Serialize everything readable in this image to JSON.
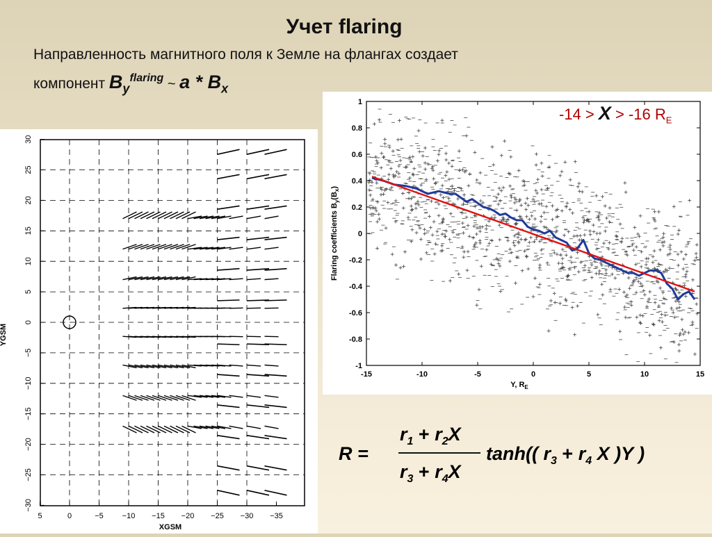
{
  "slide": {
    "title": "Учет flaring",
    "subtitle_line1": "Направленность магнитного поля к Земле на флангах создает",
    "subtitle_line2_prefix": "компонент ",
    "formula": {
      "B": "B",
      "y": "y",
      "flaring": "flaring",
      "tilde": " ~ ",
      "a": "a",
      "star": " * ",
      "Bx": "B",
      "x": "x"
    }
  },
  "left_plot": {
    "ylabel": "YGSM",
    "xlabel": "XGSM",
    "yticks": [
      "30",
      "25",
      "20",
      "15",
      "10",
      "5",
      "0",
      "−5",
      "−10",
      "−15",
      "−20",
      "−25",
      "−30"
    ],
    "xticks": [
      "5",
      "0",
      "−5",
      "−10",
      "−15",
      "−20",
      "−25",
      "−30",
      "−35"
    ]
  },
  "legend": {
    "range_left": "-14 > ",
    "x": "X",
    "range_right": " > -16 R",
    "sub": "E"
  },
  "chart_data": {
    "type": "scatter",
    "xlabel": "Y, R",
    "xlabel_sub": "E",
    "ylabel": "Flaring  coefficients B",
    "ylabel_sub": "y",
    "ylabel_tail": "(B",
    "ylabel_sub2": "x",
    "ylabel_end": ")",
    "xlim": [
      -15,
      15
    ],
    "ylim": [
      -1,
      1
    ],
    "xticks": [
      "-15",
      "-10",
      "-5",
      "0",
      "5",
      "10",
      "15"
    ],
    "yticks": [
      "1",
      "0.8",
      "0.6",
      "0.4",
      "0.2",
      "0",
      "-0.2",
      "-0.4",
      "-0.6",
      "-0.8",
      "-1"
    ],
    "series": [
      {
        "color": "#1f3a9a",
        "style": "line",
        "x": [
          -14.5,
          -13.5,
          -12.5,
          -11.5,
          -10.5,
          -9.5,
          -8.5,
          -7.5,
          -7,
          -6.5,
          -6,
          -5.5,
          -5,
          -4.5,
          -4,
          -3.5,
          -3,
          -2.5,
          -2,
          -1.5,
          -1,
          -0.5,
          0,
          0.5,
          1,
          1.5,
          2,
          2.5,
          3,
          3.5,
          4,
          4.5,
          5,
          5.5,
          6,
          6.5,
          7,
          7.5,
          8,
          8.5,
          9,
          9.5,
          10,
          10.5,
          11,
          11.5,
          12,
          12.5,
          13,
          13.5,
          14,
          14.5
        ],
        "y": [
          0.42,
          0.4,
          0.37,
          0.36,
          0.34,
          0.3,
          0.32,
          0.3,
          0.3,
          0.27,
          0.24,
          0.26,
          0.23,
          0.2,
          0.19,
          0.17,
          0.14,
          0.15,
          0.12,
          0.1,
          0.1,
          0.05,
          0.03,
          0.02,
          0.0,
          0.02,
          -0.03,
          -0.05,
          -0.07,
          -0.13,
          -0.11,
          -0.05,
          -0.15,
          -0.19,
          -0.2,
          -0.22,
          -0.24,
          -0.26,
          -0.28,
          -0.3,
          -0.3,
          -0.32,
          -0.3,
          -0.28,
          -0.28,
          -0.3,
          -0.38,
          -0.42,
          -0.5,
          -0.46,
          -0.44,
          -0.5
        ]
      },
      {
        "color": "#e01010",
        "style": "fit",
        "x": [
          -14.5,
          14.5
        ],
        "y": [
          0.43,
          -0.44
        ]
      }
    ]
  },
  "equation": {
    "lhs": "R =",
    "num": "r",
    "num_1": "1",
    "plus": " + ",
    "num_r2": "r",
    "num_2": "2",
    "X": "X",
    "den_r3": "r",
    "den_3": "3",
    "den_r4": "r",
    "den_4": "4",
    "tanh_prefix": "tanh(( ",
    "tanh_r3": "r",
    "tanh_3": "3",
    "tanh_r4": "r",
    "tanh_4": "4",
    "tanh_suffix": " X )Y )"
  }
}
